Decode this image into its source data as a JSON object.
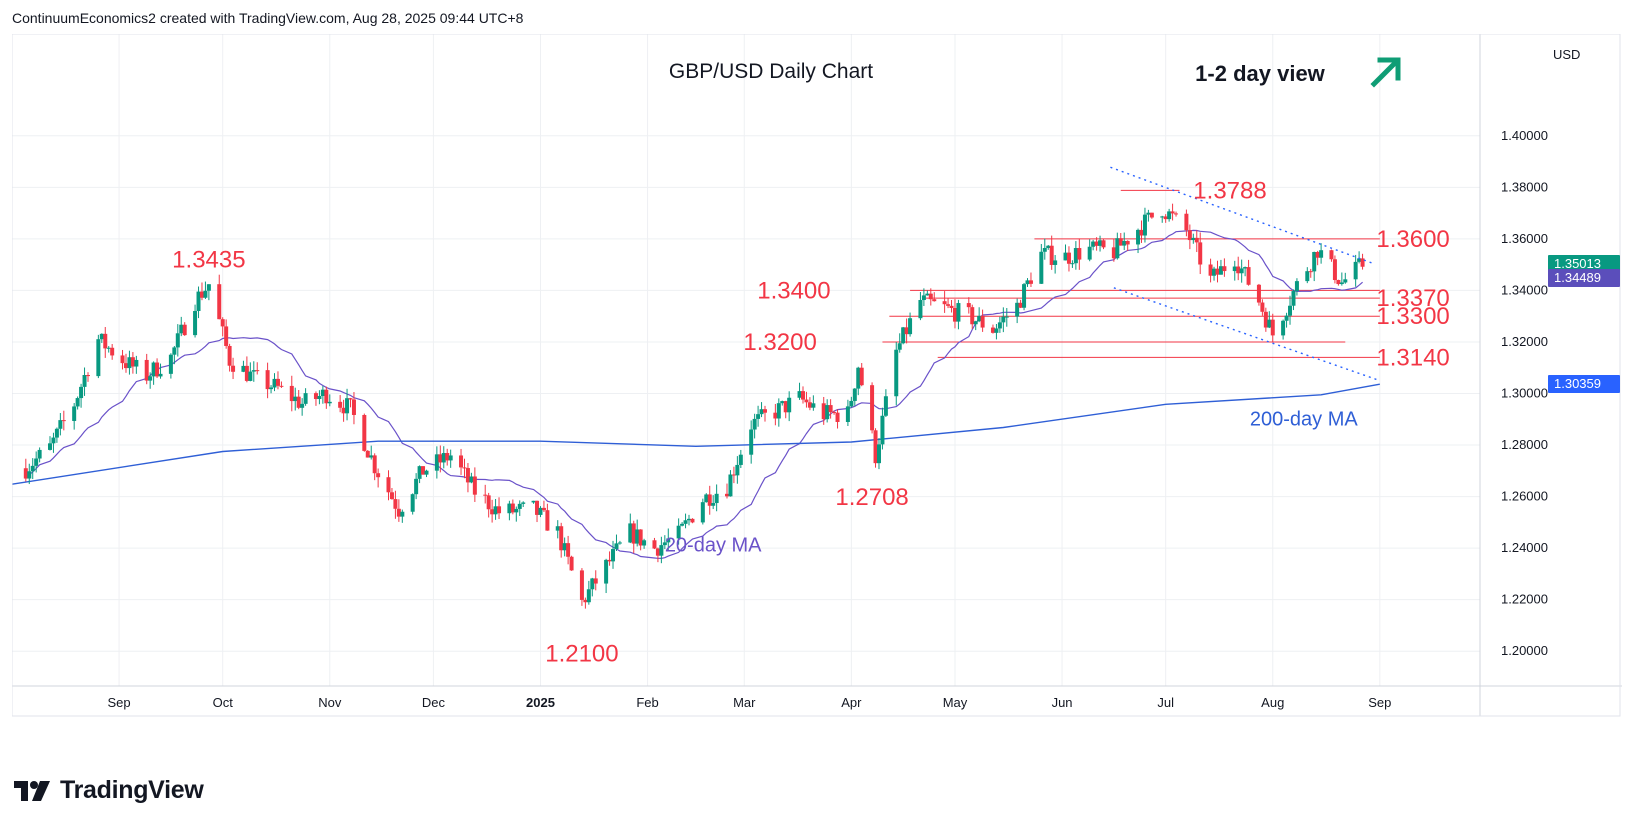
{
  "credit": "ContinuumEconomics2 created with TradingView.com, Aug 28, 2025 09:44 UTC+8",
  "brand": "TradingView",
  "currency": "USD",
  "price_badges": [
    {
      "label": "1.35013",
      "value": 1.35013,
      "color": "#089981"
    },
    {
      "label": "1.34489",
      "value": 1.34489,
      "color": "#5b4ebb"
    },
    {
      "label": "1.30359",
      "value": 1.30359,
      "color": "#2962ff"
    }
  ],
  "colors": {
    "up": "#089981",
    "down": "#f23645",
    "annotation": "#f23645",
    "ma20": "#6a52c9",
    "ma200": "#2f5fd6",
    "trendline": "#2962ff",
    "grid": "#eef0f3",
    "arrow": "#0f9d75"
  },
  "icons": {
    "logo": "tradingview-logo-icon",
    "arrow": "up-right-arrow-icon"
  },
  "chart_data": {
    "type": "candlestick",
    "title": "GBP/USD Daily Chart",
    "subtitle": "1-2 day view",
    "y_axis": {
      "ticks": [
        "1.40000",
        "1.38000",
        "1.36000",
        "1.34000",
        "1.32000",
        "1.30000",
        "1.28000",
        "1.26000",
        "1.24000",
        "1.22000",
        "1.20000"
      ],
      "ylim": [
        1.1865,
        1.4395
      ]
    },
    "x_axis": {
      "ticks": [
        "Sep",
        "Oct",
        "Nov",
        "Dec",
        "2025",
        "Feb",
        "Mar",
        "Apr",
        "May",
        "Jun",
        "Jul",
        "Aug",
        "Sep"
      ],
      "xlim": [
        "2024-08-01",
        "2025-09-30"
      ]
    },
    "grid": true,
    "levels": [
      {
        "label": "1.3788",
        "value": 1.3788
      },
      {
        "label": "1.3600",
        "value": 1.36
      },
      {
        "label": "1.3400",
        "value": 1.34
      },
      {
        "label": "1.3370",
        "value": 1.337
      },
      {
        "label": "1.3300",
        "value": 1.33
      },
      {
        "label": "1.3200",
        "value": 1.32
      },
      {
        "label": "1.3140",
        "value": 1.314
      }
    ],
    "swing_labels": [
      {
        "label": "1.3435",
        "date": "2024-09-27",
        "value": 1.3435
      },
      {
        "label": "1.2100",
        "date": "2025-01-13",
        "value": 1.21
      },
      {
        "label": "1.2708",
        "date": "2025-04-07",
        "value": 1.2708
      }
    ],
    "indicator_labels": [
      {
        "label": "20-day MA",
        "date": "2025-02-20",
        "value": 1.2387
      },
      {
        "label": "200-day MA",
        "date": "2025-08-10",
        "value": 1.2875
      }
    ],
    "trend_channel": {
      "upper": [
        {
          "date": "2025-06-15",
          "value": 1.3878
        },
        {
          "date": "2025-08-30",
          "value": 1.3505
        }
      ],
      "lower": [
        {
          "date": "2025-06-16",
          "value": 1.341
        },
        {
          "date": "2025-09-01",
          "value": 1.305
        }
      ]
    },
    "price_path": [
      [
        "2024-08-05",
        1.271
      ],
      [
        "2024-08-12",
        1.279
      ],
      [
        "2024-08-19",
        1.296
      ],
      [
        "2024-08-26",
        1.321
      ],
      [
        "2024-09-03",
        1.312
      ],
      [
        "2024-09-09",
        1.307
      ],
      [
        "2024-09-16",
        1.314
      ],
      [
        "2024-09-23",
        1.336
      ],
      [
        "2024-09-27",
        1.3425
      ],
      [
        "2024-10-03",
        1.313
      ],
      [
        "2024-10-10",
        1.306
      ],
      [
        "2024-10-17",
        1.302
      ],
      [
        "2024-10-24",
        1.296
      ],
      [
        "2024-10-31",
        1.3
      ],
      [
        "2024-11-07",
        1.294
      ],
      [
        "2024-11-14",
        1.272
      ],
      [
        "2024-11-21",
        1.255
      ],
      [
        "2024-11-28",
        1.27
      ],
      [
        "2024-12-06",
        1.276
      ],
      [
        "2024-12-13",
        1.262
      ],
      [
        "2024-12-20",
        1.254
      ],
      [
        "2024-12-30",
        1.255
      ],
      [
        "2025-01-06",
        1.246
      ],
      [
        "2025-01-13",
        1.219
      ],
      [
        "2025-01-20",
        1.233
      ],
      [
        "2025-01-27",
        1.246
      ],
      [
        "2025-02-03",
        1.24
      ],
      [
        "2025-02-10",
        1.245
      ],
      [
        "2025-02-17",
        1.259
      ],
      [
        "2025-02-24",
        1.264
      ],
      [
        "2025-03-03",
        1.288
      ],
      [
        "2025-03-10",
        1.293
      ],
      [
        "2025-03-17",
        1.298
      ],
      [
        "2025-03-24",
        1.292
      ],
      [
        "2025-03-31",
        1.292
      ],
      [
        "2025-04-03",
        1.311
      ],
      [
        "2025-04-08",
        1.276
      ],
      [
        "2025-04-14",
        1.316
      ],
      [
        "2025-04-21",
        1.336
      ],
      [
        "2025-04-28",
        1.333
      ],
      [
        "2025-05-05",
        1.33
      ],
      [
        "2025-05-12",
        1.325
      ],
      [
        "2025-05-19",
        1.334
      ],
      [
        "2025-05-26",
        1.354
      ],
      [
        "2025-06-02",
        1.353
      ],
      [
        "2025-06-09",
        1.356
      ],
      [
        "2025-06-16",
        1.355
      ],
      [
        "2025-06-23",
        1.364
      ],
      [
        "2025-06-30",
        1.372
      ],
      [
        "2025-07-07",
        1.363
      ],
      [
        "2025-07-14",
        1.344
      ],
      [
        "2025-07-21",
        1.353
      ],
      [
        "2025-07-28",
        1.336
      ],
      [
        "2025-08-01",
        1.323
      ],
      [
        "2025-08-08",
        1.342
      ],
      [
        "2025-08-14",
        1.356
      ],
      [
        "2025-08-21",
        1.343
      ],
      [
        "2025-08-27",
        1.3501
      ]
    ]
  }
}
